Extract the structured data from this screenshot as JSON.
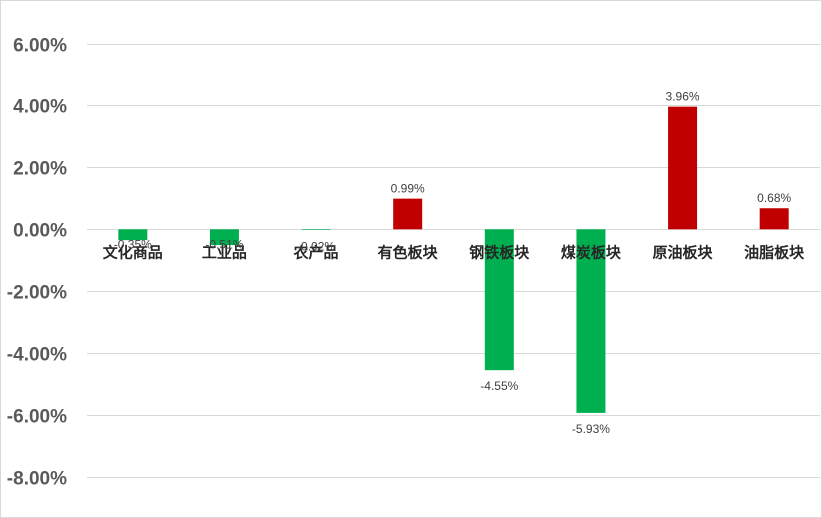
{
  "chart_data": {
    "type": "bar",
    "title": "",
    "xlabel": "",
    "ylabel": "",
    "categories": [
      "文化商品",
      "工业品",
      "农产品",
      "有色板块",
      "钢铁板块",
      "煤炭板块",
      "原油板块",
      "油脂板块"
    ],
    "values": [
      -0.35,
      -0.51,
      -0.02,
      0.99,
      -4.55,
      -5.93,
      3.96,
      0.68
    ],
    "data_labels": [
      "-0.35%",
      "-0.51%",
      "-0.02%",
      "0.99%",
      "-4.55%",
      "-5.93%",
      "3.96%",
      "0.68%"
    ],
    "ylim": [
      -8,
      6
    ],
    "yticks": [
      6,
      4,
      2,
      0,
      -2,
      -4,
      -6,
      -8
    ],
    "ytick_labels": [
      "6.00%",
      "4.00%",
      "2.00%",
      "0.00%",
      "-2.00%",
      "-4.00%",
      "-6.00%",
      "-8.00%"
    ],
    "grid": true,
    "legend": "none",
    "colors": {
      "positive": "#c00000",
      "negative": "#00b050",
      "gridline": "#d9d9d9",
      "tick_text": "#595959",
      "category_text": "#262626",
      "data_label_text": "#404040"
    }
  }
}
